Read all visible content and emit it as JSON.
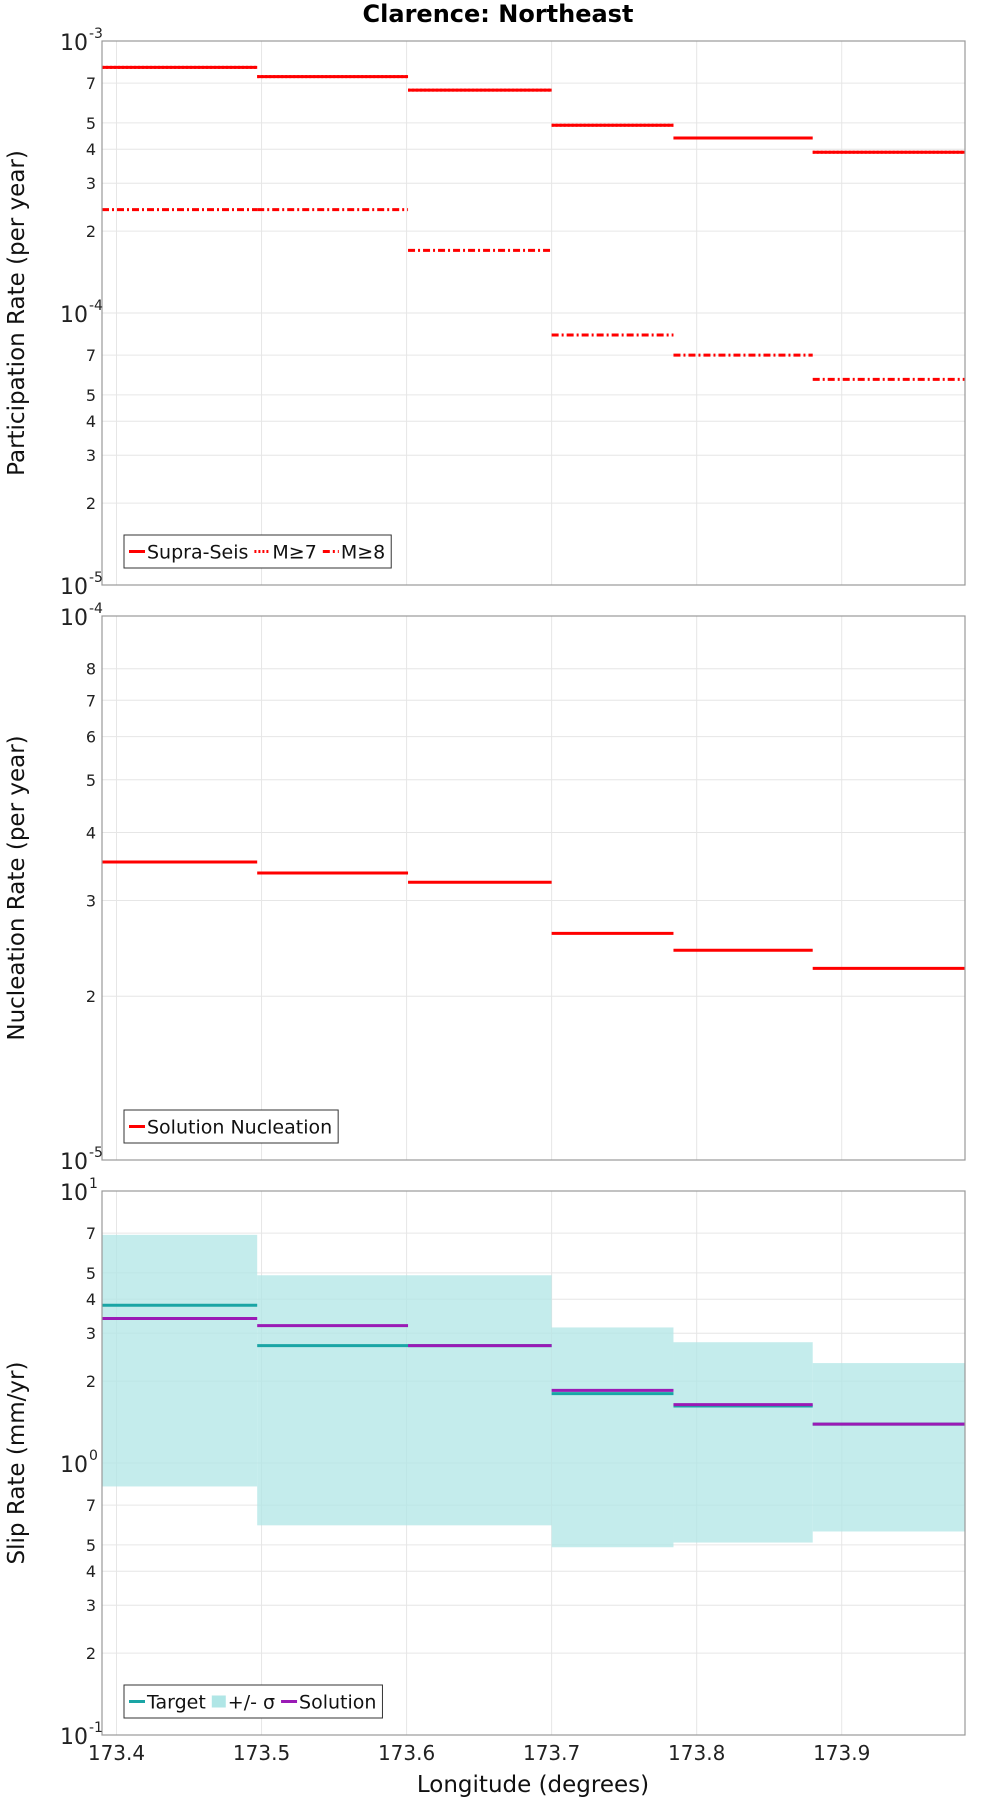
{
  "chart_data": {
    "title": "Clarence: Northeast",
    "xlabel": "Longitude (degrees)",
    "xlim": [
      173.39,
      173.985
    ],
    "xticks": [
      {
        "value": 173.4,
        "label": "173.4"
      },
      {
        "value": 173.5,
        "label": "173.5"
      },
      {
        "value": 173.6,
        "label": "173.6"
      },
      {
        "value": 173.7,
        "label": "173.7"
      },
      {
        "value": 173.8,
        "label": "173.8"
      },
      {
        "value": 173.9,
        "label": "173.9"
      }
    ],
    "panels": [
      {
        "type": "line",
        "ylabel": "Participation Rate (per year)",
        "yscale": "log",
        "ylim": [
          1e-05,
          0.001
        ],
        "major_ticks": [
          {
            "value": 0.001,
            "base": "10",
            "exp": "-3"
          },
          {
            "value": 0.0001,
            "base": "10",
            "exp": "-4"
          },
          {
            "value": 1e-05,
            "base": "10",
            "exp": "-5"
          }
        ],
        "minor_ticks": [
          {
            "value": 0.0007,
            "label": "7"
          },
          {
            "value": 0.0005,
            "label": "5"
          },
          {
            "value": 0.0004,
            "label": "4"
          },
          {
            "value": 0.0003,
            "label": "3"
          },
          {
            "value": 0.0002,
            "label": "2"
          },
          {
            "value": 7e-05,
            "label": "7"
          },
          {
            "value": 5e-05,
            "label": "5"
          },
          {
            "value": 4e-05,
            "label": "4"
          },
          {
            "value": 3e-05,
            "label": "3"
          },
          {
            "value": 2e-05,
            "label": "2"
          }
        ],
        "series": [
          {
            "name": "Supra-Seis",
            "style": "solid",
            "color": "#ff0000",
            "segments": [
              {
                "x0": 173.39,
                "x1": 173.497,
                "y": 0.0008
              },
              {
                "x0": 173.497,
                "x1": 173.601,
                "y": 0.00074
              },
              {
                "x0": 173.601,
                "x1": 173.7,
                "y": 0.00066
              },
              {
                "x0": 173.7,
                "x1": 173.784,
                "y": 0.00049
              },
              {
                "x0": 173.784,
                "x1": 173.88,
                "y": 0.00044
              },
              {
                "x0": 173.88,
                "x1": 173.985,
                "y": 0.00039
              }
            ]
          },
          {
            "name": "M≥7",
            "style": "dotted",
            "color": "#ff0000",
            "segments": [
              {
                "x0": 173.39,
                "x1": 173.497,
                "y": 0.0008
              },
              {
                "x0": 173.497,
                "x1": 173.601,
                "y": 0.00074
              },
              {
                "x0": 173.601,
                "x1": 173.7,
                "y": 0.00066
              },
              {
                "x0": 173.7,
                "x1": 173.784,
                "y": 0.00049
              },
              {
                "x0": 173.784,
                "x1": 173.88,
                "y": 0.00044
              },
              {
                "x0": 173.88,
                "x1": 173.985,
                "y": 0.00039
              }
            ]
          },
          {
            "name": "M≥8",
            "style": "dashdot",
            "color": "#ff0000",
            "segments": [
              {
                "x0": 173.39,
                "x1": 173.497,
                "y": 0.00024
              },
              {
                "x0": 173.497,
                "x1": 173.601,
                "y": 0.00024
              },
              {
                "x0": 173.601,
                "x1": 173.7,
                "y": 0.00017
              },
              {
                "x0": 173.7,
                "x1": 173.784,
                "y": 8.3e-05
              },
              {
                "x0": 173.784,
                "x1": 173.88,
                "y": 7e-05
              },
              {
                "x0": 173.88,
                "x1": 173.985,
                "y": 5.7e-05
              }
            ]
          }
        ],
        "legend": [
          {
            "label": "Supra-Seis",
            "style": "solid",
            "color": "#ff0000"
          },
          {
            "label": "M≥7",
            "style": "dotted",
            "color": "#ff0000"
          },
          {
            "label": "M≥8",
            "style": "dashdot",
            "color": "#ff0000"
          }
        ],
        "legend_position": "bottom-left"
      },
      {
        "type": "line",
        "ylabel": "Nucleation Rate (per year)",
        "yscale": "log",
        "ylim": [
          1e-05,
          0.0001
        ],
        "major_ticks": [
          {
            "value": 0.0001,
            "base": "10",
            "exp": "-4"
          },
          {
            "value": 1e-05,
            "base": "10",
            "exp": "-5"
          }
        ],
        "minor_ticks": [
          {
            "value": 8e-05,
            "label": "8"
          },
          {
            "value": 7e-05,
            "label": "7"
          },
          {
            "value": 6e-05,
            "label": "6"
          },
          {
            "value": 5e-05,
            "label": "5"
          },
          {
            "value": 4e-05,
            "label": "4"
          },
          {
            "value": 3e-05,
            "label": "3"
          },
          {
            "value": 2e-05,
            "label": "2"
          }
        ],
        "series": [
          {
            "name": "Solution Nucleation",
            "style": "solid",
            "color": "#ff0000",
            "segments": [
              {
                "x0": 173.39,
                "x1": 173.497,
                "y": 3.53e-05
              },
              {
                "x0": 173.497,
                "x1": 173.601,
                "y": 3.37e-05
              },
              {
                "x0": 173.601,
                "x1": 173.7,
                "y": 3.24e-05
              },
              {
                "x0": 173.7,
                "x1": 173.784,
                "y": 2.61e-05
              },
              {
                "x0": 173.784,
                "x1": 173.88,
                "y": 2.43e-05
              },
              {
                "x0": 173.88,
                "x1": 173.985,
                "y": 2.25e-05
              }
            ]
          }
        ],
        "legend": [
          {
            "label": "Solution Nucleation",
            "style": "solid",
            "color": "#ff0000"
          }
        ],
        "legend_position": "bottom-left"
      },
      {
        "type": "line",
        "ylabel": "Slip Rate (mm/yr)",
        "yscale": "log",
        "ylim": [
          0.1,
          10
        ],
        "major_ticks": [
          {
            "value": 10,
            "base": "10",
            "exp": "1"
          },
          {
            "value": 1,
            "base": "10",
            "exp": "0"
          },
          {
            "value": 0.1,
            "base": "10",
            "exp": "-1"
          }
        ],
        "minor_ticks": [
          {
            "value": 7,
            "label": "7"
          },
          {
            "value": 5,
            "label": "5"
          },
          {
            "value": 4,
            "label": "4"
          },
          {
            "value": 3,
            "label": "3"
          },
          {
            "value": 2,
            "label": "2"
          },
          {
            "value": 0.7,
            "label": "7"
          },
          {
            "value": 0.5,
            "label": "5"
          },
          {
            "value": 0.4,
            "label": "4"
          },
          {
            "value": 0.3,
            "label": "3"
          },
          {
            "value": 0.2,
            "label": "2"
          }
        ],
        "band": {
          "name": "+/- σ",
          "color": "#b0e6e6",
          "segments": [
            {
              "x0": 173.39,
              "x1": 173.497,
              "lo": 0.82,
              "hi": 6.9
            },
            {
              "x0": 173.497,
              "x1": 173.7,
              "lo": 0.59,
              "hi": 4.9
            },
            {
              "x0": 173.7,
              "x1": 173.784,
              "lo": 0.49,
              "hi": 3.15
            },
            {
              "x0": 173.784,
              "x1": 173.88,
              "lo": 0.51,
              "hi": 2.78
            },
            {
              "x0": 173.88,
              "x1": 173.985,
              "lo": 0.56,
              "hi": 2.33
            }
          ]
        },
        "series": [
          {
            "name": "Target",
            "style": "solid",
            "color": "#1aa5a5",
            "segments": [
              {
                "x0": 173.39,
                "x1": 173.497,
                "y": 3.8
              },
              {
                "x0": 173.497,
                "x1": 173.601,
                "y": 2.7
              },
              {
                "x0": 173.601,
                "x1": 173.7,
                "y": 2.7
              },
              {
                "x0": 173.7,
                "x1": 173.784,
                "y": 1.8
              },
              {
                "x0": 173.784,
                "x1": 173.88,
                "y": 1.62
              },
              {
                "x0": 173.88,
                "x1": 173.985,
                "y": 1.39
              }
            ]
          },
          {
            "name": "Solution",
            "style": "solid",
            "color": "#9a1ab5",
            "segments": [
              {
                "x0": 173.39,
                "x1": 173.497,
                "y": 3.4
              },
              {
                "x0": 173.497,
                "x1": 173.601,
                "y": 3.2
              },
              {
                "x0": 173.601,
                "x1": 173.7,
                "y": 2.7
              },
              {
                "x0": 173.7,
                "x1": 173.784,
                "y": 1.85
              },
              {
                "x0": 173.784,
                "x1": 173.88,
                "y": 1.64
              },
              {
                "x0": 173.88,
                "x1": 173.985,
                "y": 1.39
              }
            ]
          }
        ],
        "legend": [
          {
            "label": "Target",
            "style": "solid",
            "color": "#1aa5a5"
          },
          {
            "label": "+/- σ",
            "style": "band",
            "color": "#b0e6e6"
          },
          {
            "label": "Solution",
            "style": "solid",
            "color": "#9a1ab5"
          }
        ],
        "legend_position": "bottom-left"
      }
    ]
  }
}
